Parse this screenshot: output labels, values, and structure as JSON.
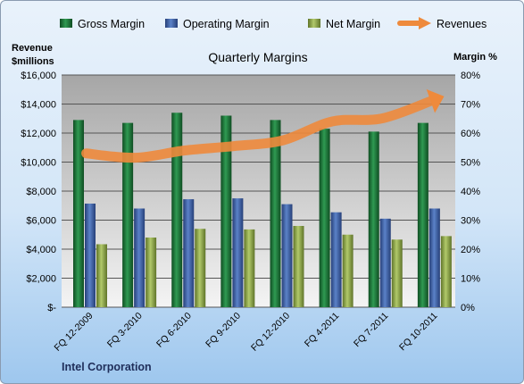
{
  "chart_data": {
    "type": "bar",
    "title": "Quarterly Margins",
    "categories": [
      "FQ 12-2009",
      "FQ 3-2010",
      "FQ 6-2010",
      "FQ 9-2010",
      "FQ 12-2010",
      "FQ 4-2011",
      "FQ 7-2011",
      "FQ 10-2011"
    ],
    "series": [
      {
        "name": "Gross Margin",
        "axis": "right",
        "unit": "%",
        "color": "#1e7a3c",
        "values": [
          64.5,
          63.5,
          67.0,
          66.0,
          64.5,
          61.5,
          60.5,
          63.5
        ]
      },
      {
        "name": "Operating Margin",
        "axis": "right",
        "unit": "%",
        "color": "#3f63a8",
        "values": [
          35.7,
          34.0,
          37.2,
          37.5,
          35.5,
          32.7,
          30.5,
          34.0
        ]
      },
      {
        "name": "Net Margin",
        "axis": "right",
        "unit": "%",
        "color": "#8ea84a",
        "values": [
          21.7,
          24.0,
          27.0,
          26.8,
          28.0,
          25.0,
          23.3,
          24.5
        ]
      },
      {
        "name": "Revenues",
        "type": "line",
        "axis": "left",
        "unit": "$millions",
        "color": "#ee8a3c",
        "values": [
          10600,
          10300,
          10800,
          11100,
          11500,
          12800,
          13000,
          14200
        ]
      }
    ],
    "left_axis": {
      "label_line1": "Revenue",
      "label_line2": "$millions",
      "range": [
        0,
        16000
      ],
      "tick_labels": [
        "$-",
        "$2,000",
        "$4,000",
        "$6,000",
        "$8,000",
        "$10,000",
        "$12,000",
        "$14,000",
        "$16,000"
      ]
    },
    "right_axis": {
      "label": "Margin %",
      "range": [
        0,
        80
      ],
      "tick_labels": [
        "0%",
        "10%",
        "20%",
        "30%",
        "40%",
        "50%",
        "60%",
        "70%",
        "80%"
      ]
    },
    "grid": true,
    "legend_position": "top"
  },
  "footer": {
    "company": "Intel Corporation"
  },
  "colors": {
    "plot_background_top": "#a9a9a9",
    "plot_background_bottom": "#f2f2f2",
    "gridline": "#555555"
  }
}
